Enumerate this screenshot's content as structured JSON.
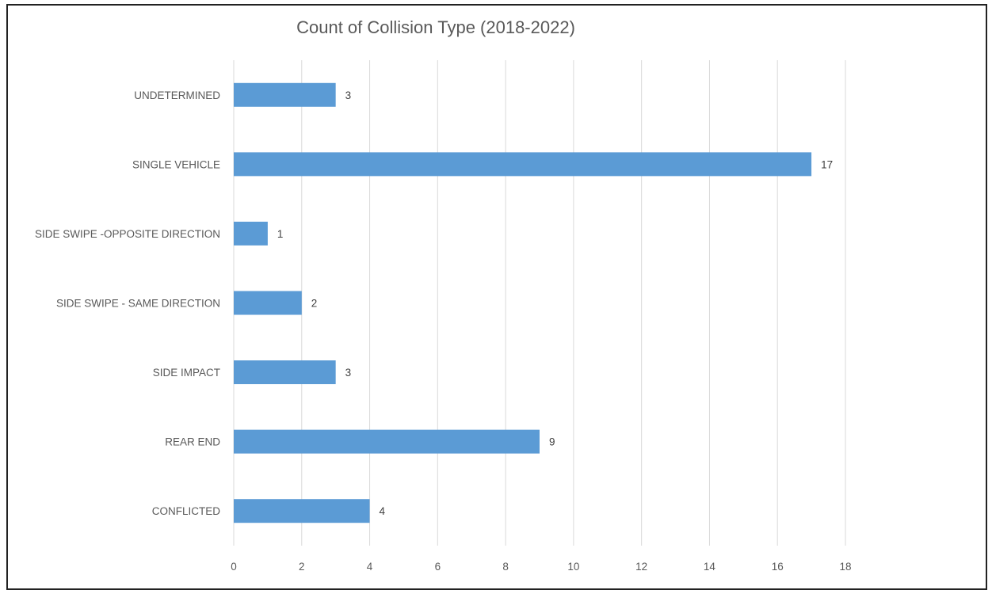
{
  "chart_data": {
    "type": "bar",
    "orientation": "horizontal",
    "title": "Count of Collision Type (2018-2022)",
    "xlabel": "",
    "ylabel": "",
    "categories": [
      "UNDETERMINED",
      "SINGLE VEHICLE",
      "SIDE SWIPE -OPPOSITE DIRECTION",
      "SIDE SWIPE - SAME DIRECTION",
      "SIDE IMPACT",
      "REAR END",
      "CONFLICTED"
    ],
    "values": [
      3,
      17,
      1,
      2,
      3,
      9,
      4
    ],
    "xlim": [
      0,
      18
    ],
    "xticks": [
      0,
      2,
      4,
      6,
      8,
      10,
      12,
      14,
      16,
      18
    ],
    "grid": "vertical",
    "legend": "none",
    "data_labels": true,
    "colors": {
      "bar": "#5B9BD5",
      "grid": "#D9D9D9",
      "text": "#595959"
    }
  }
}
